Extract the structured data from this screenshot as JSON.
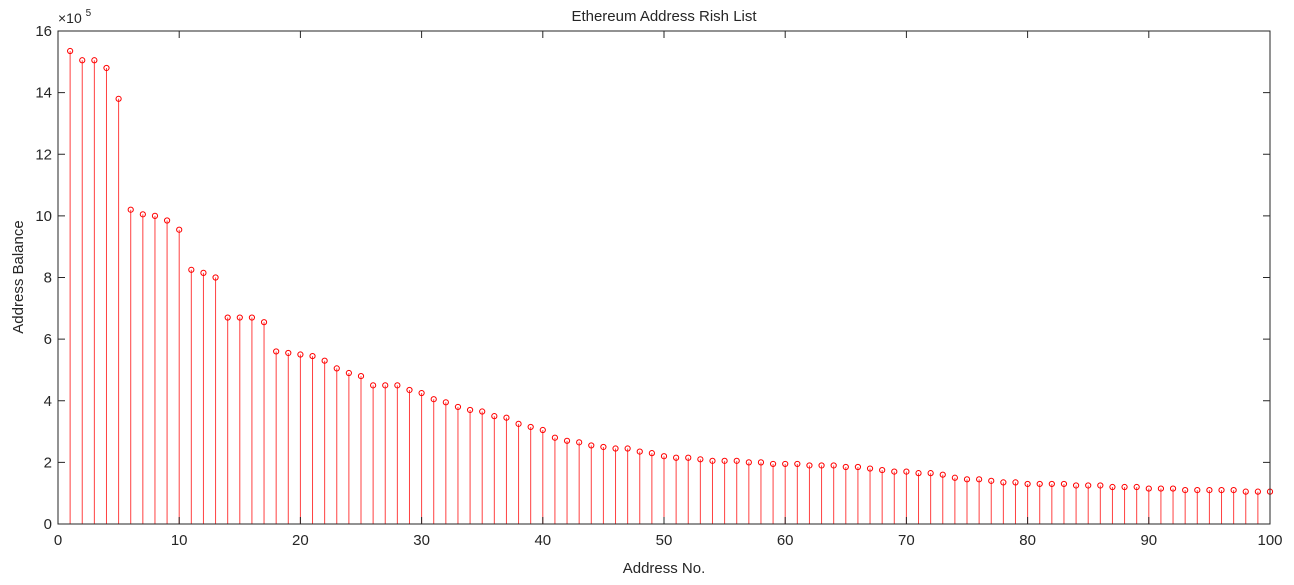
{
  "chart_data": {
    "type": "stem",
    "title": "Ethereum Address Rish List",
    "xlabel": "Address No.",
    "ylabel": "Address Balance",
    "y_exponent_label": "×10",
    "y_exponent_power": "5",
    "xlim": [
      0,
      100
    ],
    "ylim": [
      0,
      16
    ],
    "xticks": [
      0,
      10,
      20,
      30,
      40,
      50,
      60,
      70,
      80,
      90,
      100
    ],
    "yticks": [
      0,
      2,
      4,
      6,
      8,
      10,
      12,
      14,
      16
    ],
    "grid": false,
    "box": true,
    "marker": "circle",
    "color": "#ff0000",
    "x": [
      1,
      2,
      3,
      4,
      5,
      6,
      7,
      8,
      9,
      10,
      11,
      12,
      13,
      14,
      15,
      16,
      17,
      18,
      19,
      20,
      21,
      22,
      23,
      24,
      25,
      26,
      27,
      28,
      29,
      30,
      31,
      32,
      33,
      34,
      35,
      36,
      37,
      38,
      39,
      40,
      41,
      42,
      43,
      44,
      45,
      46,
      47,
      48,
      49,
      50,
      51,
      52,
      53,
      54,
      55,
      56,
      57,
      58,
      59,
      60,
      61,
      62,
      63,
      64,
      65,
      66,
      67,
      68,
      69,
      70,
      71,
      72,
      73,
      74,
      75,
      76,
      77,
      78,
      79,
      80,
      81,
      82,
      83,
      84,
      85,
      86,
      87,
      88,
      89,
      90,
      91,
      92,
      93,
      94,
      95,
      96,
      97,
      98,
      99,
      100
    ],
    "values": [
      15.35,
      15.05,
      15.05,
      14.8,
      13.8,
      10.2,
      10.05,
      10.0,
      9.85,
      9.55,
      8.25,
      8.15,
      8.0,
      6.7,
      6.7,
      6.7,
      6.55,
      5.6,
      5.55,
      5.5,
      5.45,
      5.3,
      5.05,
      4.9,
      4.8,
      4.5,
      4.5,
      4.5,
      4.35,
      4.25,
      4.05,
      3.95,
      3.8,
      3.7,
      3.65,
      3.5,
      3.45,
      3.25,
      3.15,
      3.05,
      2.8,
      2.7,
      2.65,
      2.55,
      2.5,
      2.45,
      2.45,
      2.35,
      2.3,
      2.2,
      2.15,
      2.15,
      2.1,
      2.05,
      2.05,
      2.05,
      2.0,
      2.0,
      1.95,
      1.95,
      1.95,
      1.9,
      1.9,
      1.9,
      1.85,
      1.85,
      1.8,
      1.75,
      1.7,
      1.7,
      1.65,
      1.65,
      1.6,
      1.5,
      1.45,
      1.45,
      1.4,
      1.35,
      1.35,
      1.3,
      1.3,
      1.3,
      1.3,
      1.25,
      1.25,
      1.25,
      1.2,
      1.2,
      1.2,
      1.15,
      1.15,
      1.15,
      1.1,
      1.1,
      1.1,
      1.1,
      1.1,
      1.05,
      1.05,
      1.05
    ]
  }
}
